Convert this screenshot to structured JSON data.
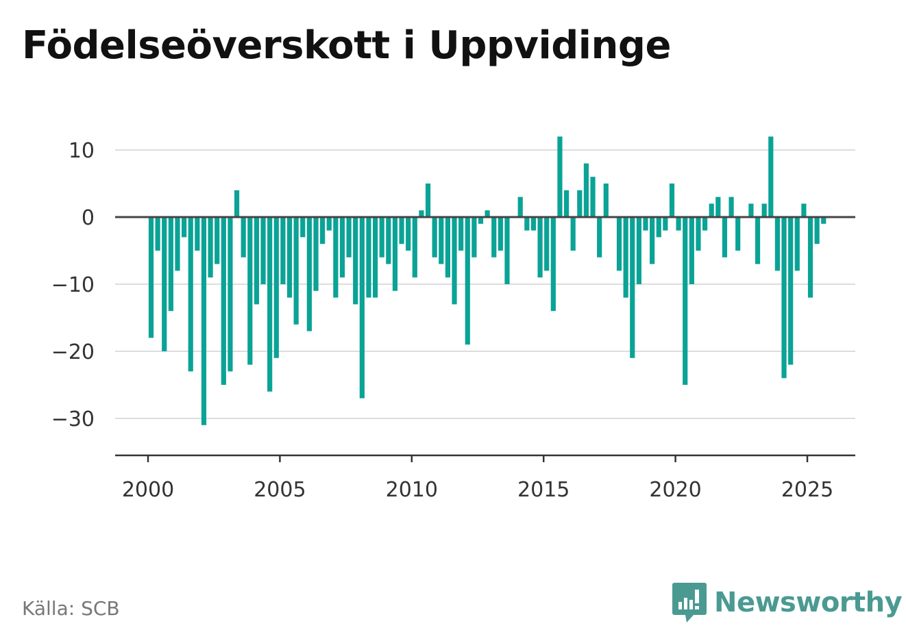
{
  "title": "Födelseöverskott i Uppvidinge",
  "source": "Källa: SCB",
  "brand": {
    "name": "Newsworthy",
    "icon": "bar-chart-speech-bubble-icon",
    "color": "#4a9a92"
  },
  "colors": {
    "bar": "#0aa396",
    "zero_line": "#444444",
    "grid": "#dddddd",
    "axis": "#333333"
  },
  "chart_data": {
    "type": "bar",
    "frequency": "quarterly",
    "x_start": "2000 Q1",
    "xlim": [
      1999.25,
      2027.0
    ],
    "ylim": [
      -36,
      13
    ],
    "yticks": [
      10,
      0,
      -10,
      -20,
      -30
    ],
    "ytick_labels": [
      "10",
      "0",
      "−10",
      "−20",
      "−30"
    ],
    "xticks": [
      2000,
      2005,
      2010,
      2015,
      2020,
      2025
    ],
    "xtick_labels": [
      "2000",
      "2005",
      "2010",
      "2015",
      "2020",
      "2025"
    ],
    "grid": "horizontal",
    "values": [
      -18,
      -5,
      -20,
      -14,
      -8,
      -3,
      -23,
      -5,
      -31,
      -9,
      -7,
      -25,
      -23,
      4,
      -6,
      -22,
      -13,
      -10,
      -26,
      -21,
      -10,
      -12,
      -16,
      -3,
      -17,
      -11,
      -4,
      -2,
      -12,
      -9,
      -6,
      -13,
      -27,
      -12,
      -12,
      -6,
      -7,
      -11,
      -4,
      -5,
      -9,
      1,
      5,
      -6,
      -7,
      -9,
      -13,
      -5,
      -19,
      -6,
      -1,
      1,
      -6,
      -5,
      -10,
      0,
      3,
      -2,
      -2,
      -9,
      -8,
      -14,
      12,
      4,
      -5,
      4,
      8,
      6,
      -6,
      5,
      0,
      -8,
      -12,
      -21,
      -10,
      -2,
      -7,
      -3,
      -2,
      5,
      -2,
      -25,
      -10,
      -5,
      -2,
      2,
      3,
      -6,
      3,
      -5,
      0,
      2,
      -7,
      2,
      12,
      -8,
      -24,
      -22,
      -8,
      2,
      -12,
      -4,
      -1
    ]
  }
}
